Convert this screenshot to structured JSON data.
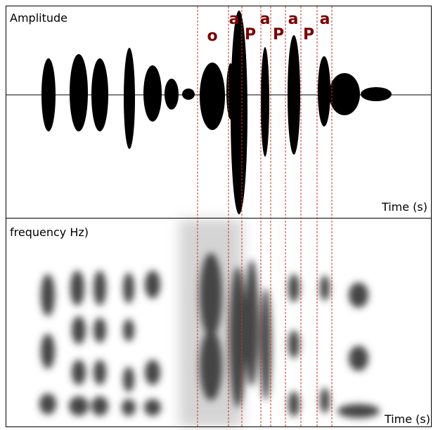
{
  "panels": [
    {
      "y_label": "Amplitude",
      "x_label": "Time (s)"
    },
    {
      "y_label": "frequency Hz)",
      "x_label": "Time (s)"
    }
  ],
  "segments": [
    "o",
    "a",
    "P",
    "a",
    "P",
    "a",
    "P",
    "a"
  ]
}
